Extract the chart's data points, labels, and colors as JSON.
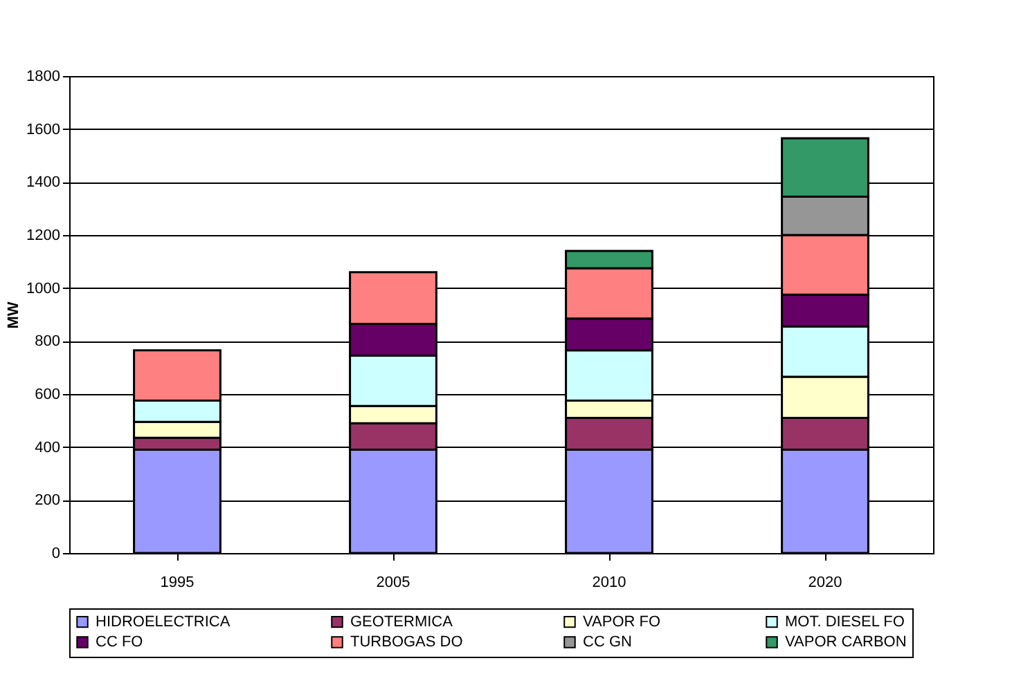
{
  "chart_data": {
    "type": "bar",
    "stacked": true,
    "ylabel": "MW",
    "categories": [
      "1995",
      "2005",
      "2010",
      "2020"
    ],
    "series": [
      {
        "name": "HIDROELECTRICA",
        "color": "#9999ff",
        "values": [
          390,
          390,
          390,
          390
        ]
      },
      {
        "name": "GEOTERMICA",
        "color": "#993366",
        "values": [
          45,
          100,
          120,
          120
        ]
      },
      {
        "name": "VAPOR  FO",
        "color": "#ffffcc",
        "values": [
          60,
          65,
          65,
          155
        ]
      },
      {
        "name": "MOT. DIESEL FO",
        "color": "#ccffff",
        "values": [
          80,
          190,
          190,
          190
        ]
      },
      {
        "name": "CC FO",
        "color": "#660066",
        "values": [
          0,
          120,
          120,
          120
        ]
      },
      {
        "name": "TURBOGAS DO",
        "color": "#ff8080",
        "values": [
          190,
          195,
          190,
          225
        ]
      },
      {
        "name": "CC GN",
        "color": "#969696",
        "values": [
          0,
          0,
          0,
          145
        ]
      },
      {
        "name": "VAPOR CARBON",
        "color": "#339966",
        "values": [
          0,
          0,
          65,
          220
        ]
      }
    ],
    "ylim": [
      0,
      1800
    ],
    "yticks": [
      0,
      200,
      400,
      600,
      800,
      1000,
      1200,
      1400,
      1600,
      1800
    ],
    "grid": "y",
    "legend": "bottom"
  }
}
